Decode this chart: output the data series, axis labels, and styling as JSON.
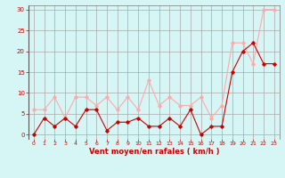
{
  "x": [
    0,
    1,
    2,
    3,
    4,
    5,
    6,
    7,
    8,
    9,
    10,
    11,
    12,
    13,
    14,
    15,
    16,
    17,
    18,
    19,
    20,
    21,
    22,
    23
  ],
  "y_mean": [
    0,
    4,
    2,
    4,
    2,
    6,
    6,
    1,
    3,
    3,
    4,
    2,
    2,
    4,
    2,
    6,
    0,
    2,
    2,
    15,
    20,
    22,
    17,
    17
  ],
  "y_gust": [
    6,
    6,
    9,
    4,
    9,
    9,
    7,
    9,
    6,
    9,
    6,
    13,
    7,
    9,
    7,
    7,
    9,
    4,
    7,
    22,
    22,
    17,
    30,
    30
  ],
  "mean_color": "#cc0000",
  "gust_color": "#ffaaaa",
  "bg_color": "#d6f5f5",
  "grid_color": "#aaaaaa",
  "axis_color": "#cc0000",
  "xlabel": "Vent moyen/en rafales ( km/h )",
  "ylim": [
    -1,
    31
  ],
  "yticks": [
    0,
    5,
    10,
    15,
    20,
    25,
    30
  ],
  "xlim": [
    -0.5,
    23.5
  ],
  "xticks": [
    0,
    1,
    2,
    3,
    4,
    5,
    6,
    7,
    8,
    9,
    10,
    11,
    12,
    13,
    14,
    15,
    16,
    17,
    18,
    19,
    20,
    21,
    22,
    23
  ],
  "marker": "D",
  "markersize": 1.8,
  "linewidth": 0.8
}
